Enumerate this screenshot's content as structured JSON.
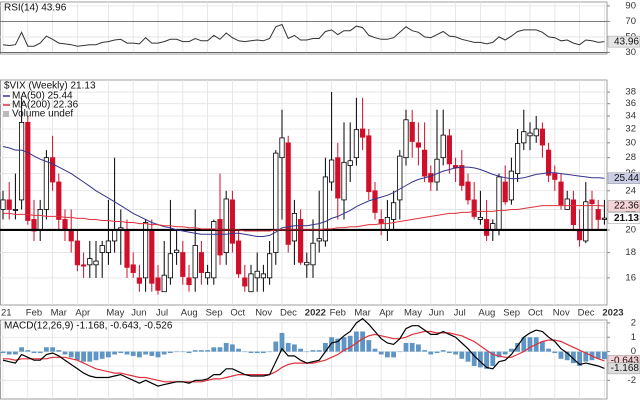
{
  "chart_data": [
    {
      "type": "line",
      "title": "RSI(14) 43.96",
      "color": "#333333",
      "tag": true,
      "tag_color": "#e6e6e6",
      "ylim": [
        28,
        95
      ],
      "yticks": [
        30,
        50,
        70,
        90
      ],
      "hlines": [
        30,
        70
      ],
      "values": [
        40,
        39,
        40,
        56,
        38,
        38,
        42,
        51,
        47,
        42,
        41,
        40,
        38,
        39,
        40,
        40,
        43,
        44,
        46,
        47,
        42,
        42,
        41,
        49,
        42,
        42,
        44,
        47,
        47,
        44,
        44,
        48,
        45,
        45,
        52,
        47,
        55,
        49,
        45,
        44,
        45,
        46,
        45,
        48,
        63,
        66,
        48,
        52,
        46,
        46,
        48,
        48,
        57,
        59,
        53,
        58,
        58,
        64,
        62,
        52,
        49,
        47,
        47,
        49,
        56,
        63,
        58,
        56,
        50,
        49,
        53,
        57,
        51,
        50,
        47,
        45,
        43,
        43,
        41,
        43,
        50,
        46,
        51,
        57,
        59,
        59,
        59,
        56,
        50,
        49,
        45,
        46,
        42,
        40,
        46,
        45,
        43,
        43.96
      ]
    },
    {
      "type": "candlestick",
      "title": "$VIX (Weekly) 21.13",
      "log_scale": true,
      "grid": true,
      "up_color": "#000000",
      "down_color": "#d0102a",
      "close_tag": true,
      "ylim": [
        14.1,
        40.2
      ],
      "yticks": [
        16,
        18,
        20,
        22,
        24,
        26,
        28,
        30,
        32,
        34,
        36,
        38
      ],
      "hline": 20,
      "annotations": [
        "Volume undef"
      ],
      "categories": [
        "21",
        null,
        null,
        null,
        "Feb",
        null,
        null,
        null,
        "Mar",
        null,
        null,
        null,
        "Apr",
        null,
        null,
        null,
        null,
        "May",
        null,
        null,
        null,
        "Jun",
        null,
        null,
        null,
        "Jul",
        null,
        null,
        null,
        "Aug",
        null,
        null,
        null,
        "Sep",
        null,
        null,
        null,
        "Oct",
        null,
        null,
        null,
        "Nov",
        null,
        null,
        null,
        "Dec",
        null,
        null,
        null,
        "2022",
        null,
        null,
        null,
        "Feb",
        null,
        null,
        null,
        "Mar",
        null,
        null,
        null,
        "Apr",
        null,
        null,
        null,
        "May",
        null,
        null,
        null,
        "Jun",
        null,
        null,
        null,
        "Jul",
        null,
        null,
        null,
        "Aug",
        null,
        null,
        null,
        "Sep",
        null,
        null,
        null,
        "Oct",
        null,
        null,
        null,
        "Nov",
        null,
        null,
        null,
        "Dec",
        null,
        null,
        null,
        "2023"
      ],
      "open": [
        22,
        23,
        22,
        23,
        33,
        21,
        20,
        22,
        28,
        25,
        21,
        20,
        19,
        17,
        17,
        17,
        18,
        18,
        19,
        20,
        20,
        17,
        16,
        16,
        20,
        16,
        15,
        16,
        18,
        18,
        16,
        16,
        18,
        16,
        16,
        21,
        18,
        23,
        19,
        16,
        15,
        16,
        16,
        16,
        18,
        28,
        30,
        19,
        21,
        17,
        17,
        19,
        19,
        25,
        28,
        23,
        27,
        28,
        32,
        31,
        24,
        21,
        20,
        21,
        23,
        28,
        33,
        30,
        29,
        26,
        25,
        28,
        31,
        27,
        27,
        25,
        23,
        21,
        21,
        20,
        20,
        25,
        23,
        26,
        30,
        31,
        31,
        32,
        29,
        26,
        25,
        22,
        23,
        20,
        19,
        23,
        22,
        21
      ],
      "high": [
        24,
        25,
        26,
        37,
        34,
        23,
        23,
        29,
        31,
        26,
        22,
        22,
        20,
        18,
        19,
        19,
        19,
        23,
        28,
        22,
        21,
        18,
        17,
        21,
        21,
        17,
        19,
        23,
        20,
        19,
        17,
        22,
        19,
        17,
        21,
        26,
        24,
        24,
        20,
        17,
        17,
        18,
        17,
        19,
        29,
        35,
        31,
        23,
        22,
        18,
        21,
        24,
        28,
        38,
        30,
        33,
        33,
        37,
        37,
        32,
        25,
        22,
        23,
        24,
        29,
        35,
        35,
        33,
        33,
        27,
        35,
        35,
        32,
        28,
        29,
        26,
        25,
        24,
        23,
        21,
        26,
        27,
        28,
        32,
        35,
        33,
        34,
        33,
        30,
        27,
        26,
        24,
        24,
        22,
        25,
        24,
        23,
        23
      ],
      "low": [
        21,
        21,
        21,
        22,
        20.5,
        19,
        19,
        21,
        24,
        20,
        19,
        18,
        16.5,
        16,
        16,
        16,
        16,
        17,
        18,
        17,
        16,
        16,
        15,
        15,
        15,
        14.8,
        15,
        15.5,
        17,
        15.5,
        15,
        15,
        15.5,
        15.5,
        15.5,
        17,
        17,
        18,
        16,
        15,
        15,
        15,
        15,
        15.5,
        17,
        21,
        18,
        17,
        17,
        16,
        16,
        18,
        18.5,
        24,
        21,
        21,
        25,
        27,
        29,
        23,
        21,
        19.5,
        19,
        20,
        21,
        27,
        28,
        27,
        25,
        24,
        24,
        27,
        26,
        25,
        24,
        22.5,
        21,
        20.5,
        19,
        19,
        19.5,
        22.5,
        22.5,
        25,
        29,
        29,
        30,
        28,
        25,
        24,
        22,
        22,
        20,
        18.5,
        18.8,
        20,
        20,
        20.5
      ],
      "close": [
        23,
        22,
        22,
        33,
        20.9,
        19.9,
        22,
        28,
        25,
        21,
        20,
        19,
        17,
        16.9,
        17.5,
        17.3,
        18.6,
        19,
        20,
        20.2,
        16.8,
        16.4,
        15.6,
        20.7,
        15.6,
        15.1,
        16.2,
        17.9,
        18.2,
        16.1,
        15.5,
        18.6,
        16.4,
        16.4,
        20.8,
        17.8,
        23.1,
        18.8,
        16.3,
        15.4,
        16.3,
        16.5,
        16.3,
        17.9,
        28.6,
        30.7,
        18.7,
        21.6,
        17.2,
        17.2,
        18.8,
        19.2,
        25.6,
        27.7,
        23.2,
        27.4,
        27.6,
        31.9,
        30.8,
        23.9,
        21.7,
        20.6,
        21.2,
        22.7,
        28.2,
        33.4,
        30.2,
        29.4,
        25.7,
        25,
        27.8,
        31.1,
        27.2,
        26.7,
        24.6,
        23,
        21.3,
        21.2,
        19.5,
        20.6,
        25.6,
        22.8,
        26.3,
        29.9,
        31.6,
        31.4,
        32,
        29.7,
        25.8,
        25.3,
        22.5,
        23.1,
        20.5,
        19.1,
        22.8,
        22.6,
        21,
        21.13
      ],
      "series": [
        {
          "name": "MA(50) 25.44",
          "color": "#34348f",
          "tag": true,
          "tag_color": "#c9cde6",
          "values": [
            29.5,
            29.3,
            29.0,
            29.0,
            28.7,
            28.2,
            27.8,
            27.5,
            27.2,
            26.8,
            26.4,
            26.0,
            25.5,
            25.0,
            24.5,
            24.0,
            23.6,
            23.2,
            22.8,
            22.4,
            22.0,
            21.6,
            21.3,
            21.0,
            20.7,
            20.5,
            20.3,
            20.2,
            20.0,
            19.9,
            19.8,
            19.7,
            19.6,
            19.6,
            19.6,
            19.6,
            19.6,
            19.7,
            19.7,
            19.6,
            19.5,
            19.4,
            19.4,
            19.5,
            19.8,
            20.2,
            20.3,
            20.4,
            20.4,
            20.4,
            20.5,
            20.6,
            20.8,
            21.1,
            21.3,
            21.6,
            21.9,
            22.3,
            22.6,
            22.9,
            23.1,
            23.3,
            23.5,
            23.8,
            24.2,
            24.6,
            25.0,
            25.3,
            25.5,
            25.7,
            26.0,
            26.3,
            26.5,
            26.7,
            26.8,
            26.8,
            26.7,
            26.5,
            26.2,
            25.9,
            25.7,
            25.5,
            25.4,
            25.4,
            25.5,
            25.7,
            25.9,
            26.0,
            26.1,
            26.1,
            26.0,
            25.9,
            25.8,
            25.7,
            25.6,
            25.5,
            25.5,
            25.44
          ]
        },
        {
          "name": "MA(200) 22.36",
          "color": "#e0303a",
          "tag": true,
          "tag_color": "#f6d3d6",
          "values": [
            21.6,
            21.6,
            21.5,
            21.5,
            21.5,
            21.4,
            21.4,
            21.3,
            21.3,
            21.3,
            21.2,
            21.2,
            21.1,
            21.1,
            21.0,
            21.0,
            20.9,
            20.9,
            20.8,
            20.8,
            20.7,
            20.7,
            20.6,
            20.6,
            20.5,
            20.5,
            20.4,
            20.4,
            20.3,
            20.3,
            20.2,
            20.2,
            20.1,
            20.1,
            20.1,
            20.0,
            20.0,
            20.0,
            20.0,
            19.9,
            19.9,
            19.9,
            19.9,
            19.9,
            20.0,
            20.0,
            20.0,
            20.0,
            20.0,
            20.0,
            20.0,
            20.0,
            20.1,
            20.1,
            20.2,
            20.2,
            20.3,
            20.3,
            20.4,
            20.5,
            20.5,
            20.6,
            20.6,
            20.7,
            20.8,
            20.9,
            21.0,
            21.1,
            21.2,
            21.3,
            21.4,
            21.5,
            21.6,
            21.6,
            21.7,
            21.7,
            21.8,
            21.8,
            21.8,
            21.8,
            21.9,
            21.9,
            22.0,
            22.0,
            22.1,
            22.2,
            22.3,
            22.4,
            22.4,
            22.4,
            22.4,
            22.4,
            22.4,
            22.4,
            22.4,
            22.4,
            22.4,
            22.36
          ]
        }
      ]
    },
    {
      "type": "macd",
      "title": "MACD(12,26,9) -1.168, -0.643, -0.526",
      "ylim": [
        -3.3,
        2.2
      ],
      "yticks": [
        -2,
        -1,
        0,
        1,
        2
      ],
      "series": [
        {
          "kind": "bar",
          "color": "#5f95c4",
          "values": [
            -0.1,
            -0.2,
            -0.2,
            0.3,
            0.1,
            -0.1,
            -0.1,
            0.3,
            0.3,
            0.1,
            -0.2,
            -0.4,
            -0.6,
            -0.7,
            -0.7,
            -0.6,
            -0.5,
            -0.4,
            -0.2,
            -0.1,
            -0.2,
            -0.3,
            -0.4,
            -0.2,
            -0.3,
            -0.4,
            -0.2,
            -0.1,
            0.0,
            0.0,
            -0.1,
            0.1,
            0.1,
            0.1,
            0.3,
            0.3,
            0.6,
            0.5,
            0.2,
            0.0,
            -0.1,
            -0.1,
            -0.1,
            0.0,
            0.7,
            1.3,
            0.6,
            0.5,
            0.2,
            0.0,
            0.1,
            0.1,
            0.6,
            1.0,
            0.9,
            1.0,
            1.1,
            1.4,
            1.4,
            0.8,
            0.2,
            -0.2,
            -0.4,
            -0.4,
            0.0,
            0.6,
            0.6,
            0.5,
            0.1,
            -0.2,
            -0.1,
            0.1,
            -0.1,
            -0.2,
            -0.5,
            -0.7,
            -1.0,
            -1.1,
            -1.2,
            -1.0,
            -0.4,
            -0.2,
            0.2,
            0.6,
            1.0,
            1.0,
            1.0,
            0.7,
            0.2,
            -0.1,
            -0.5,
            -0.6,
            -0.8,
            -1.0,
            -0.7,
            -0.6,
            -0.5,
            -0.526
          ]
        },
        {
          "kind": "line",
          "color": "#e0303a",
          "tag": true,
          "tag_color": "#f6d3d6",
          "values": [
            -0.5,
            -0.5,
            -0.6,
            -0.5,
            -0.5,
            -0.5,
            -0.5,
            -0.5,
            -0.4,
            -0.4,
            -0.4,
            -0.5,
            -0.6,
            -0.8,
            -1.0,
            -1.2,
            -1.3,
            -1.4,
            -1.5,
            -1.5,
            -1.6,
            -1.7,
            -1.8,
            -1.8,
            -1.9,
            -2.0,
            -2.1,
            -2.1,
            -2.1,
            -2.1,
            -2.1,
            -2.1,
            -2.1,
            -2.0,
            -1.9,
            -1.9,
            -1.8,
            -1.7,
            -1.6,
            -1.6,
            -1.6,
            -1.6,
            -1.6,
            -1.6,
            -1.4,
            -1.1,
            -0.9,
            -0.8,
            -0.8,
            -0.8,
            -0.8,
            -0.7,
            -0.6,
            -0.4,
            -0.2,
            0.1,
            0.3,
            0.6,
            0.9,
            1.1,
            1.2,
            1.1,
            1.0,
            0.9,
            0.9,
            1.0,
            1.2,
            1.3,
            1.4,
            1.4,
            1.3,
            1.3,
            1.3,
            1.2,
            1.1,
            0.9,
            0.7,
            0.4,
            0.1,
            -0.2,
            -0.3,
            -0.4,
            -0.4,
            -0.2,
            0.0,
            0.3,
            0.5,
            0.7,
            0.8,
            0.8,
            0.7,
            0.5,
            0.3,
            0.1,
            -0.1,
            -0.3,
            -0.5,
            -0.643
          ]
        },
        {
          "kind": "line",
          "color": "#000000",
          "tag": true,
          "tag_color": "#dddddd",
          "values": [
            -0.6,
            -0.7,
            -0.8,
            -0.2,
            -0.4,
            -0.6,
            -0.6,
            -0.2,
            -0.1,
            -0.3,
            -0.6,
            -0.9,
            -1.2,
            -1.5,
            -1.7,
            -1.8,
            -1.8,
            -1.8,
            -1.7,
            -1.6,
            -1.8,
            -2.0,
            -2.2,
            -2.0,
            -2.2,
            -2.4,
            -2.3,
            -2.2,
            -2.1,
            -2.1,
            -2.2,
            -2.0,
            -2.0,
            -1.9,
            -1.6,
            -1.6,
            -1.2,
            -1.2,
            -1.4,
            -1.6,
            -1.7,
            -1.7,
            -1.7,
            -1.6,
            -0.7,
            0.2,
            -0.3,
            -0.3,
            -0.6,
            -0.8,
            -0.7,
            -0.6,
            0.0,
            0.6,
            0.7,
            1.1,
            1.4,
            2.0,
            2.3,
            1.9,
            1.4,
            0.9,
            0.6,
            0.5,
            0.9,
            1.6,
            1.8,
            1.8,
            1.5,
            1.2,
            1.2,
            1.4,
            1.2,
            1.0,
            0.6,
            0.2,
            -0.3,
            -0.7,
            -1.1,
            -1.2,
            -0.7,
            -0.6,
            -0.2,
            0.4,
            1.0,
            1.3,
            1.5,
            1.4,
            1.0,
            0.7,
            0.2,
            -0.1,
            -0.5,
            -0.9,
            -0.8,
            -0.9,
            -1.0,
            -1.168
          ]
        }
      ]
    }
  ]
}
